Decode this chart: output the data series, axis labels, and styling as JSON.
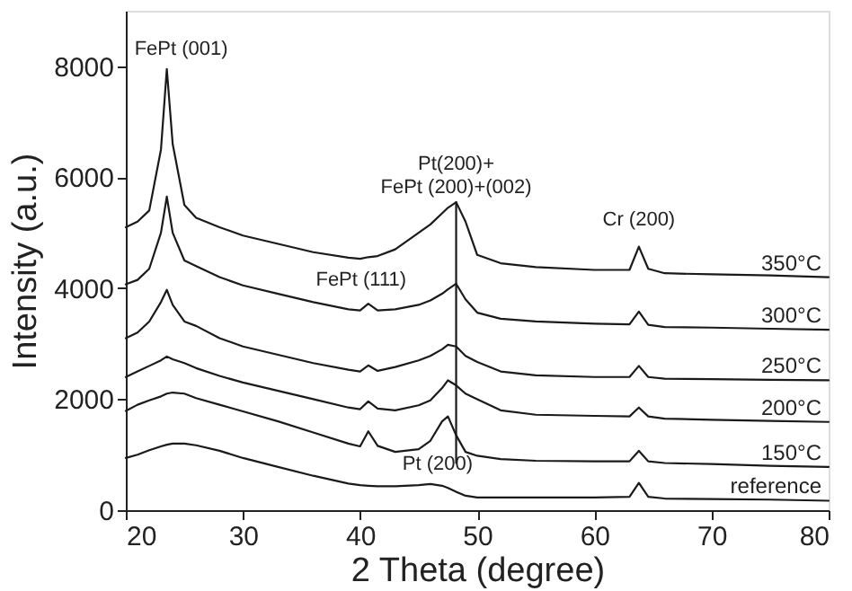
{
  "chart_data": {
    "type": "line",
    "xlabel": "2 Theta (degree)",
    "ylabel": "Intensity (a.u.)",
    "xlim": [
      20,
      80
    ],
    "xticks": [
      20,
      30,
      40,
      50,
      60,
      70,
      80
    ],
    "ylim": [
      0,
      9000
    ],
    "yticks": [
      0,
      2000,
      4000,
      6000,
      8000
    ],
    "grid": false,
    "marker": "none",
    "line_style": "solid",
    "x": [
      20,
      21,
      22,
      23,
      23.5,
      24,
      25,
      26,
      28,
      30,
      33,
      36,
      39,
      40,
      40.7,
      41.5,
      43,
      45,
      46,
      47,
      47.5,
      48.2,
      49,
      50,
      52,
      55,
      60,
      63,
      63.8,
      64.6,
      66,
      70,
      75,
      80
    ],
    "series": [
      {
        "name": "350°C",
        "color": "#1a1a1a",
        "values": [
          5100,
          5200,
          5400,
          6500,
          7950,
          6600,
          5500,
          5270,
          5100,
          4950,
          4800,
          4650,
          4550,
          4530,
          4560,
          4580,
          4700,
          5000,
          5150,
          5350,
          5450,
          5550,
          5200,
          4600,
          4450,
          4380,
          4330,
          4330,
          4750,
          4350,
          4270,
          4250,
          4230,
          4200
        ]
      },
      {
        "name": "300°C",
        "color": "#1a1a1a",
        "values": [
          4070,
          4150,
          4350,
          5000,
          5650,
          5000,
          4500,
          4400,
          4200,
          4050,
          3900,
          3750,
          3620,
          3600,
          3720,
          3600,
          3620,
          3700,
          3780,
          3900,
          3980,
          4080,
          3800,
          3560,
          3450,
          3400,
          3360,
          3350,
          3580,
          3340,
          3300,
          3290,
          3270,
          3250
        ]
      },
      {
        "name": "250°C",
        "color": "#1a1a1a",
        "values": [
          3100,
          3200,
          3400,
          3750,
          3970,
          3700,
          3400,
          3320,
          3100,
          2950,
          2800,
          2650,
          2530,
          2500,
          2610,
          2510,
          2580,
          2700,
          2780,
          2900,
          2980,
          2950,
          2780,
          2670,
          2500,
          2430,
          2400,
          2400,
          2600,
          2400,
          2370,
          2360,
          2350,
          2340
        ]
      },
      {
        "name": "200°C",
        "color": "#1a1a1a",
        "values": [
          2400,
          2500,
          2600,
          2700,
          2770,
          2720,
          2650,
          2560,
          2420,
          2300,
          2150,
          2000,
          1850,
          1820,
          1960,
          1830,
          1800,
          1890,
          1980,
          2200,
          2340,
          2250,
          2100,
          2000,
          1800,
          1720,
          1700,
          1690,
          1850,
          1690,
          1650,
          1630,
          1610,
          1590
        ]
      },
      {
        "name": "150°C",
        "color": "#1a1a1a",
        "values": [
          1790,
          1900,
          1980,
          2050,
          2100,
          2120,
          2100,
          2020,
          1900,
          1780,
          1600,
          1400,
          1200,
          1150,
          1420,
          1160,
          1050,
          1100,
          1250,
          1600,
          1690,
          1350,
          1050,
          980,
          920,
          890,
          880,
          880,
          1070,
          880,
          850,
          830,
          800,
          780
        ]
      },
      {
        "name": "reference",
        "color": "#1a1a1a",
        "values": [
          940,
          1000,
          1080,
          1150,
          1180,
          1200,
          1200,
          1170,
          1070,
          940,
          780,
          620,
          480,
          450,
          440,
          430,
          430,
          450,
          470,
          440,
          400,
          330,
          260,
          230,
          230,
          230,
          230,
          240,
          490,
          240,
          210,
          200,
          190,
          170
        ]
      },
      {
        "type": "line",
        "color": "#1a1a1a",
        "x": [
          48.2,
          48.2
        ],
        "values": [
          5550,
          850
        ]
      }
    ],
    "annotations": [
      {
        "text": "FePt (001)",
        "x": 23.5,
        "y": 7950
      },
      {
        "text": "Pt(200)+\nFePt (200)+(002)",
        "x": 48.2,
        "y": 5550
      },
      {
        "text": "FePt (111)",
        "x": 40.7,
        "y": 3720
      },
      {
        "text": "Cr (200)",
        "x": 63.8,
        "y": 4750
      },
      {
        "text": "Pt (200)",
        "x": 46,
        "y": 470
      }
    ]
  }
}
